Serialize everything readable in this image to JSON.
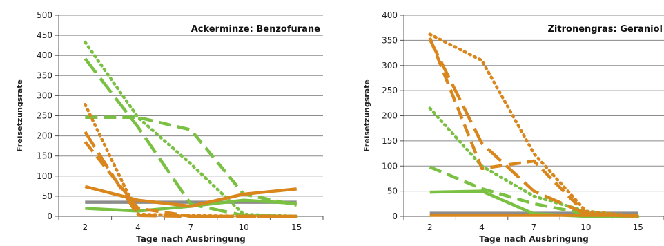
{
  "chart_data": [
    {
      "type": "line",
      "title": "Ackerminze: Benzofurane",
      "xlabel": "Tage nach Ausbringung",
      "ylabel": "Freisetzungsrate",
      "categories": [
        "2",
        "4",
        "7",
        "10",
        "15"
      ],
      "ylim": [
        0,
        500
      ],
      "yticks": [
        0,
        50,
        100,
        150,
        200,
        250,
        300,
        350,
        400,
        450,
        500
      ],
      "grid": true,
      "legend": "none",
      "colors": {
        "gray": "#8c8c8c",
        "green": "#7ac143",
        "orange": "#d9861c"
      },
      "series": [
        {
          "color": "gray",
          "style": "solid",
          "values": [
            35,
            35,
            35,
            35,
            35
          ]
        },
        {
          "color": "green",
          "style": "dotted",
          "values": [
            433,
            246,
            130,
            5,
            0
          ]
        },
        {
          "color": "green",
          "style": "longdash",
          "values": [
            392,
            222,
            30,
            2,
            0
          ]
        },
        {
          "color": "green",
          "style": "dash",
          "values": [
            246,
            246,
            215,
            55,
            28
          ]
        },
        {
          "color": "green",
          "style": "solid",
          "values": [
            20,
            13,
            25,
            40,
            32
          ]
        },
        {
          "color": "orange",
          "style": "dotted",
          "values": [
            278,
            5,
            2,
            0,
            0
          ]
        },
        {
          "color": "orange",
          "style": "longdash",
          "values": [
            210,
            2,
            0,
            0,
            0
          ]
        },
        {
          "color": "orange",
          "style": "dash",
          "values": [
            185,
            20,
            0,
            0,
            0
          ]
        },
        {
          "color": "orange",
          "style": "solid",
          "values": [
            74,
            40,
            25,
            55,
            68
          ]
        }
      ]
    },
    {
      "type": "line",
      "title": "Zitronengras: Geraniol",
      "xlabel": "Tage nach Ausbringung",
      "ylabel": "Freisetzungsrate",
      "categories": [
        "2",
        "4",
        "7",
        "10",
        "15"
      ],
      "ylim": [
        0,
        400
      ],
      "yticks": [
        0,
        50,
        100,
        150,
        200,
        250,
        300,
        350,
        400
      ],
      "grid": true,
      "legend": "none",
      "colors": {
        "gray": "#8c8c8c",
        "green": "#7ac143",
        "orange": "#d9861c"
      },
      "series": [
        {
          "color": "gray",
          "style": "solid",
          "values": [
            6,
            6,
            6,
            6,
            6
          ]
        },
        {
          "color": "green",
          "style": "dotted",
          "values": [
            215,
            100,
            40,
            10,
            0
          ]
        },
        {
          "color": "green",
          "style": "dash",
          "values": [
            98,
            55,
            25,
            5,
            0
          ]
        },
        {
          "color": "green",
          "style": "solid",
          "values": [
            48,
            50,
            5,
            0,
            0
          ]
        },
        {
          "color": "orange",
          "style": "dotted",
          "values": [
            362,
            310,
            125,
            10,
            0
          ]
        },
        {
          "color": "orange",
          "style": "longdash",
          "values": [
            352,
            145,
            50,
            5,
            0
          ]
        },
        {
          "color": "orange",
          "style": "dash",
          "values": [
            355,
            95,
            110,
            5,
            0
          ]
        },
        {
          "color": "orange",
          "style": "solid",
          "values": [
            2,
            2,
            2,
            2,
            2
          ]
        }
      ]
    }
  ]
}
